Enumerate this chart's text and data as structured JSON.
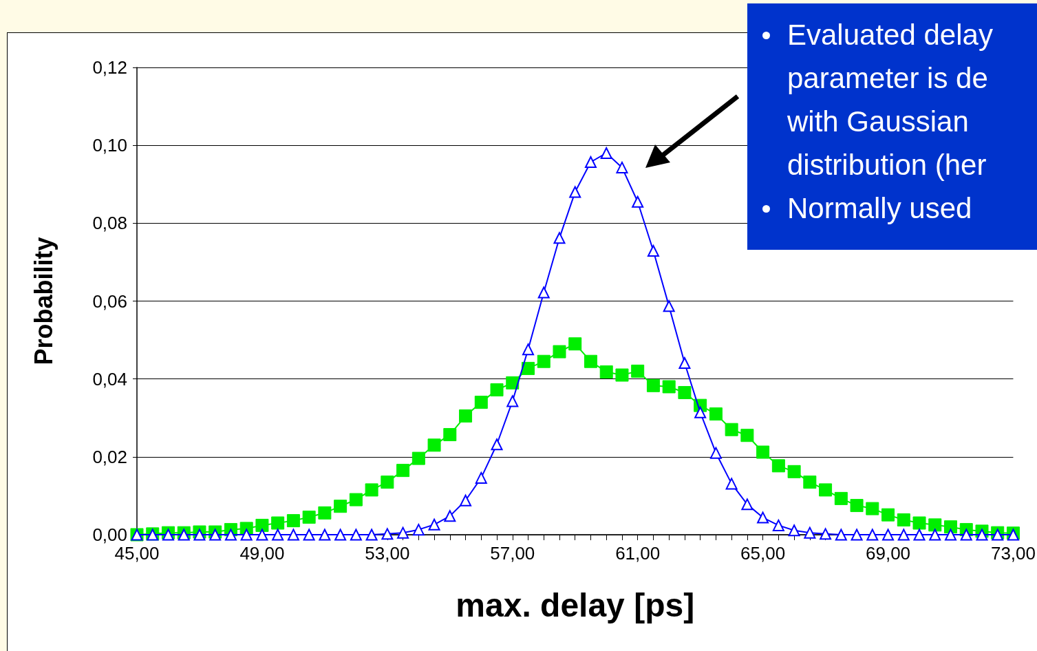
{
  "chart_data": {
    "type": "line",
    "xlabel": "max. delay [ps]",
    "ylabel": "Probability",
    "annotations": [
      "Evaluated delay parameter is de with Gaussian distribution (her",
      "Normally used"
    ],
    "x": [
      45,
      45.5,
      46,
      46.5,
      47,
      47.5,
      48,
      48.5,
      49,
      49.5,
      50,
      50.5,
      51,
      51.5,
      52,
      52.5,
      53,
      53.5,
      54,
      54.5,
      55,
      55.5,
      56,
      56.5,
      57,
      57.5,
      58,
      58.5,
      59,
      59.5,
      60,
      60.5,
      61,
      61.5,
      62,
      62.5,
      63,
      63.5,
      64,
      64.5,
      65,
      65.5,
      66,
      66.5,
      67,
      67.5,
      68,
      68.5,
      69,
      69.5,
      70,
      70.5,
      71,
      71.5,
      72,
      72.5,
      73
    ],
    "series": [
      {
        "color": "#00ee00",
        "marker": "square",
        "values": [
          0,
          0.0002,
          0.0005,
          0.0005,
          0.0007,
          0.0007,
          0.0013,
          0.0016,
          0.0024,
          0.003,
          0.0036,
          0.0045,
          0.0056,
          0.0073,
          0.009,
          0.0115,
          0.0135,
          0.0165,
          0.0196,
          0.023,
          0.0257,
          0.0305,
          0.034,
          0.0372,
          0.039,
          0.0427,
          0.0445,
          0.047,
          0.049,
          0.0445,
          0.0418,
          0.041,
          0.042,
          0.0383,
          0.038,
          0.0365,
          0.0332,
          0.031,
          0.027,
          0.0255,
          0.0212,
          0.0177,
          0.0162,
          0.0135,
          0.0115,
          0.0093,
          0.0075,
          0.0067,
          0.0051,
          0.0038,
          0.003,
          0.0025,
          0.002,
          0.0013,
          0.0009,
          0.0005,
          0.0004
        ]
      },
      {
        "color": "#0000ff",
        "marker": "triangle",
        "values": [
          0,
          0,
          0,
          0,
          0,
          0,
          0,
          0,
          0,
          0,
          0,
          0,
          0,
          0,
          0,
          0,
          0.0002,
          0.0005,
          0.0013,
          0.0026,
          0.0048,
          0.0088,
          0.0146,
          0.0232,
          0.0343,
          0.0476,
          0.0622,
          0.0762,
          0.088,
          0.0957,
          0.098,
          0.0943,
          0.0855,
          0.0729,
          0.0587,
          0.0441,
          0.0314,
          0.021,
          0.0131,
          0.0078,
          0.0044,
          0.0024,
          0.0011,
          0.0005,
          0.0002,
          0,
          0,
          0,
          0,
          0,
          0,
          0,
          0,
          0,
          0,
          0,
          0
        ]
      }
    ],
    "xlim": [
      45,
      73
    ],
    "xticks": [
      {
        "value": 45,
        "label": "45,00"
      },
      {
        "value": 45.5,
        "label": null
      },
      {
        "value": 46,
        "label": null
      },
      {
        "value": 46.5,
        "label": null
      },
      {
        "value": 47,
        "label": null
      },
      {
        "value": 47.5,
        "label": null
      },
      {
        "value": 48,
        "label": null
      },
      {
        "value": 48.5,
        "label": null
      },
      {
        "value": 49,
        "label": "49,00"
      },
      {
        "value": 49.5,
        "label": null
      },
      {
        "value": 50,
        "label": null
      },
      {
        "value": 50.5,
        "label": null
      },
      {
        "value": 51,
        "label": null
      },
      {
        "value": 51.5,
        "label": null
      },
      {
        "value": 52,
        "label": null
      },
      {
        "value": 52.5,
        "label": null
      },
      {
        "value": 53,
        "label": "53,00"
      },
      {
        "value": 53.5,
        "label": null
      },
      {
        "value": 54,
        "label": null
      },
      {
        "value": 54.5,
        "label": null
      },
      {
        "value": 55,
        "label": null
      },
      {
        "value": 55.5,
        "label": null
      },
      {
        "value": 56,
        "label": null
      },
      {
        "value": 56.5,
        "label": null
      },
      {
        "value": 57,
        "label": "57,00"
      },
      {
        "value": 57.5,
        "label": null
      },
      {
        "value": 58,
        "label": null
      },
      {
        "value": 58.5,
        "label": null
      },
      {
        "value": 59,
        "label": null
      },
      {
        "value": 59.5,
        "label": null
      },
      {
        "value": 60,
        "label": null
      },
      {
        "value": 60.5,
        "label": null
      },
      {
        "value": 61,
        "label": "61,00"
      },
      {
        "value": 61.5,
        "label": null
      },
      {
        "value": 62,
        "label": null
      },
      {
        "value": 62.5,
        "label": null
      },
      {
        "value": 63,
        "label": null
      },
      {
        "value": 63.5,
        "label": null
      },
      {
        "value": 64,
        "label": null
      },
      {
        "value": 64.5,
        "label": null
      },
      {
        "value": 65,
        "label": "65,00"
      },
      {
        "value": 65.5,
        "label": null
      },
      {
        "value": 66,
        "label": null
      },
      {
        "value": 66.5,
        "label": null
      },
      {
        "value": 67,
        "label": null
      },
      {
        "value": 67.5,
        "label": null
      },
      {
        "value": 68,
        "label": null
      },
      {
        "value": 68.5,
        "label": null
      },
      {
        "value": 69,
        "label": "69,00"
      },
      {
        "value": 69.5,
        "label": null
      },
      {
        "value": 70,
        "label": null
      },
      {
        "value": 70.5,
        "label": null
      },
      {
        "value": 71,
        "label": null
      },
      {
        "value": 71.5,
        "label": null
      },
      {
        "value": 72,
        "label": null
      },
      {
        "value": 72.5,
        "label": null
      },
      {
        "value": 73,
        "label": "73,00"
      }
    ],
    "ylim": [
      0,
      0.12
    ],
    "yticks": [
      {
        "value": 0,
        "label": "0,00"
      },
      {
        "value": 0.02,
        "label": "0,02"
      },
      {
        "value": 0.04,
        "label": "0,04"
      },
      {
        "value": 0.06,
        "label": "0,06"
      },
      {
        "value": 0.08,
        "label": "0,08"
      },
      {
        "value": 0.1,
        "label": "0,10"
      },
      {
        "value": 0.12,
        "label": "0,12"
      }
    ],
    "grid": "y",
    "line_style": "solid"
  }
}
